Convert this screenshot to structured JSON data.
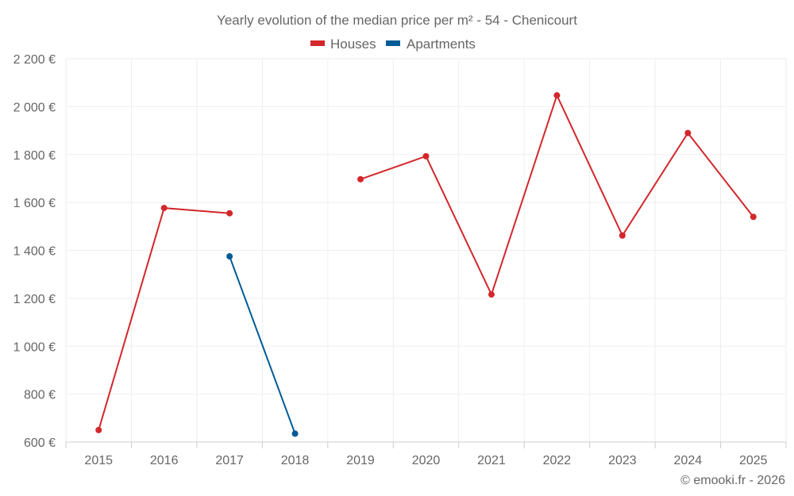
{
  "chart_data": {
    "type": "line",
    "title": "Yearly evolution of the median price per m² - 54 - Chenicourt",
    "categories": [
      "2015",
      "2016",
      "2017",
      "2018",
      "2019",
      "2020",
      "2021",
      "2022",
      "2023",
      "2024",
      "2025"
    ],
    "ylim": [
      600,
      2200
    ],
    "yticks": [
      600,
      800,
      1000,
      1200,
      1400,
      1600,
      1800,
      2000,
      2200
    ],
    "ytick_labels": [
      "600 €",
      "800 €",
      "1 000 €",
      "1 200 €",
      "1 400 €",
      "1 600 €",
      "1 800 €",
      "2 000 €",
      "2 200 €"
    ],
    "grid": true,
    "legend_position": "top-center",
    "series": [
      {
        "name": "Houses",
        "color": "#d3272b",
        "values": [
          650,
          1577,
          1555,
          null,
          1697,
          1793,
          1216,
          2047,
          1462,
          1890,
          1540
        ]
      },
      {
        "name": "Apartments",
        "color": "#005b96",
        "values": [
          null,
          null,
          1375,
          635,
          null,
          null,
          null,
          null,
          null,
          null,
          null
        ]
      }
    ]
  },
  "credit": "© emooki.fr - 2026"
}
